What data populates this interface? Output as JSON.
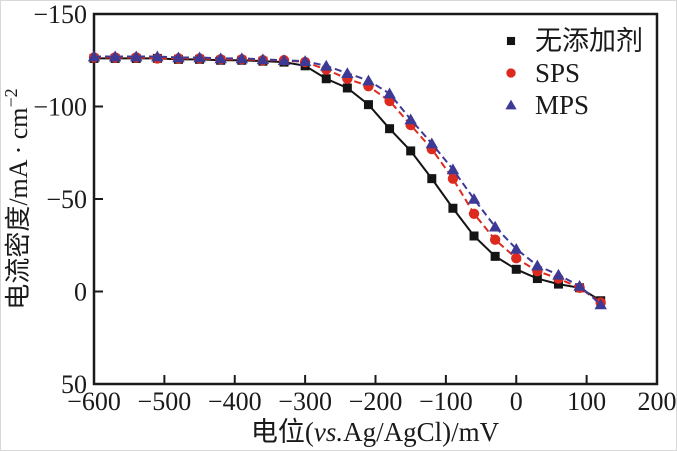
{
  "chart_data": {
    "type": "line",
    "title": "",
    "xlabel": "电位(vs.Ag/AgCl)/mV",
    "ylabel": "电流密度/mA·cm−2",
    "xlabel_parts": {
      "pre": "电位(",
      "italic": "vs.",
      "post": "Ag/AgCl)/mV"
    },
    "ylabel_parts": {
      "main": "电流密度/mA · cm",
      "superscript": "−2"
    },
    "x_axis": {
      "min": -600,
      "max": 200,
      "ticks": [
        -600,
        -500,
        -400,
        -300,
        -200,
        -100,
        0,
        100,
        200
      ],
      "tick_labels": [
        "−600",
        "−500",
        "−400",
        "−300",
        "−200",
        "−100",
        "0",
        "100",
        "200"
      ]
    },
    "y_axis": {
      "min": -150,
      "max": 50,
      "inverted_display": true,
      "ticks": [
        -150,
        -100,
        -50,
        0,
        50
      ],
      "tick_labels": [
        "−150",
        "−100",
        "−50",
        "0",
        "50"
      ]
    },
    "grid": false,
    "legend_position": "top-right-inside",
    "x": [
      -600,
      -570,
      -540,
      -510,
      -480,
      -450,
      -420,
      -390,
      -360,
      -330,
      -300,
      -270,
      -240,
      -210,
      -180,
      -150,
      -120,
      -90,
      -60,
      -30,
      0,
      30,
      60,
      90,
      120
    ],
    "series": [
      {
        "name": "无添加剂",
        "marker": "square",
        "color": "#141414",
        "line_style": "solid",
        "values": [
          -126,
          -126,
          -126,
          -126,
          -125.5,
          -125.5,
          -125,
          -125,
          -124.5,
          -124,
          -122,
          -115,
          -110,
          -101,
          -88,
          -76,
          -61,
          -45,
          -30,
          -19,
          -12,
          -7,
          -4,
          -2,
          5
        ]
      },
      {
        "name": "SPS",
        "marker": "circle",
        "color": "#dd2a1e",
        "line_style": "dashed",
        "values": [
          -126.5,
          -126.5,
          -126.5,
          -126,
          -126,
          -126,
          -125.5,
          -125.5,
          -125,
          -125,
          -124,
          -120,
          -115,
          -111,
          -103,
          -90,
          -77,
          -61,
          -42,
          -28,
          -18,
          -11,
          -7,
          -2,
          6
        ]
      },
      {
        "name": "MPS",
        "marker": "triangle",
        "color": "#3d3a96",
        "line_style": "dashed",
        "values": [
          -127,
          -127,
          -127,
          -127,
          -126.5,
          -126.5,
          -126,
          -126,
          -125.5,
          -125,
          -124.5,
          -122,
          -118,
          -114,
          -107,
          -93,
          -80,
          -66,
          -50,
          -35,
          -23,
          -14,
          -9,
          -3,
          7
        ]
      }
    ]
  }
}
